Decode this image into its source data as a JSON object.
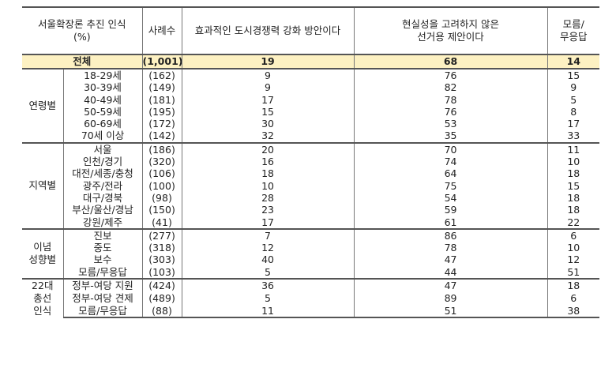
{
  "header": {
    "col1": [
      "서울확장론 추진 인식",
      "(%)"
    ],
    "col2": "사례수",
    "col3": "효과적인 도시경쟁력 강화 방안이다",
    "col4": [
      "현실성을 고려하지 않은",
      "선거용 제안이다"
    ],
    "col5": [
      "모름/",
      "무응답"
    ]
  },
  "total": {
    "label": "전체",
    "n": "(1,001)",
    "v1": "19",
    "v2": "68",
    "v3": "14"
  },
  "groups": [
    {
      "name": [
        "연령별"
      ],
      "rows": [
        {
          "label": "18-29세",
          "n": "(162)",
          "v1": "9",
          "v2": "76",
          "v3": "15"
        },
        {
          "label": "30-39세",
          "n": "(149)",
          "v1": "9",
          "v2": "82",
          "v3": "9"
        },
        {
          "label": "40-49세",
          "n": "(181)",
          "v1": "17",
          "v2": "78",
          "v3": "5"
        },
        {
          "label": "50-59세",
          "n": "(195)",
          "v1": "15",
          "v2": "76",
          "v3": "8"
        },
        {
          "label": "60-69세",
          "n": "(172)",
          "v1": "30",
          "v2": "53",
          "v3": "17"
        },
        {
          "label": "70세 이상",
          "n": "(142)",
          "v1": "32",
          "v2": "35",
          "v3": "33"
        }
      ]
    },
    {
      "name": [
        "지역별"
      ],
      "rows": [
        {
          "label": "서울",
          "n": "(186)",
          "v1": "20",
          "v2": "70",
          "v3": "11"
        },
        {
          "label": "인천/경기",
          "n": "(320)",
          "v1": "16",
          "v2": "74",
          "v3": "10"
        },
        {
          "label": "대전/세종/충청",
          "n": "(106)",
          "v1": "18",
          "v2": "64",
          "v3": "18"
        },
        {
          "label": "광주/전라",
          "n": "(100)",
          "v1": "10",
          "v2": "75",
          "v3": "15"
        },
        {
          "label": "대구/경북",
          "n": "(98)",
          "v1": "28",
          "v2": "54",
          "v3": "18"
        },
        {
          "label": "부산/울산/경남",
          "n": "(150)",
          "v1": "23",
          "v2": "59",
          "v3": "18"
        },
        {
          "label": "강원/제주",
          "n": "(41)",
          "v1": "17",
          "v2": "61",
          "v3": "22"
        }
      ]
    },
    {
      "name": [
        "이념",
        "성향별"
      ],
      "rows": [
        {
          "label": "진보",
          "n": "(277)",
          "v1": "7",
          "v2": "86",
          "v3": "6"
        },
        {
          "label": "중도",
          "n": "(318)",
          "v1": "12",
          "v2": "78",
          "v3": "10"
        },
        {
          "label": "보수",
          "n": "(303)",
          "v1": "40",
          "v2": "47",
          "v3": "12"
        },
        {
          "label": "모름/무응답",
          "n": "(103)",
          "v1": "5",
          "v2": "44",
          "v3": "51"
        }
      ]
    },
    {
      "name": [
        "22대",
        "총선",
        "인식"
      ],
      "rows": [
        {
          "label": "정부-여당 지원",
          "n": "(424)",
          "v1": "36",
          "v2": "47",
          "v3": "18"
        },
        {
          "label": "정부-여당 견제",
          "n": "(489)",
          "v1": "5",
          "v2": "89",
          "v3": "6"
        },
        {
          "label": "모름/무응답",
          "n": "(88)",
          "v1": "11",
          "v2": "51",
          "v3": "38"
        }
      ]
    }
  ]
}
